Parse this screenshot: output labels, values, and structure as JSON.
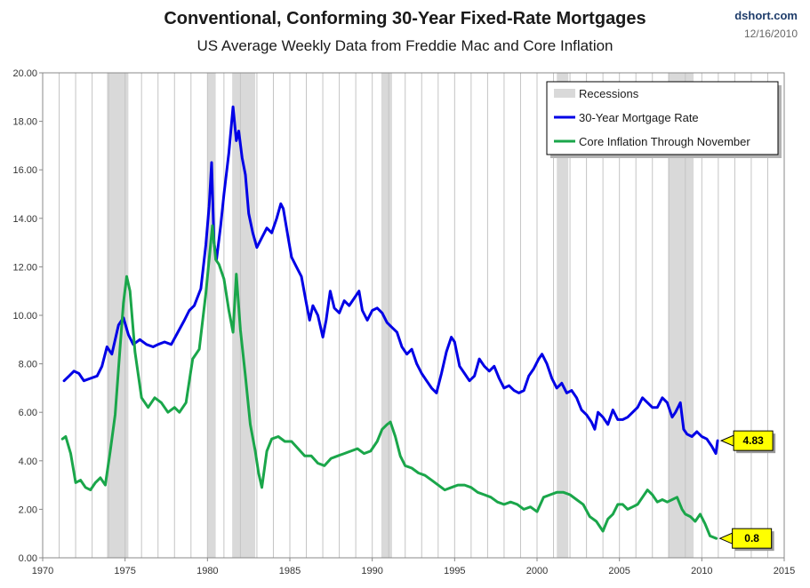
{
  "header": {
    "title": "Conventional, Conforming 30-Year Fixed-Rate Mortgages",
    "subtitle": "US Average Weekly Data from Freddie Mac and Core Inflation",
    "source": "dshort.com",
    "date": "12/16/2010"
  },
  "chart_data": {
    "type": "line",
    "title": "Conventional, Conforming 30-Year Fixed-Rate Mortgages",
    "subtitle": "US Average Weekly Data from Freddie Mac and Core Inflation",
    "xlim": [
      1970,
      2015
    ],
    "ylim": [
      0,
      20
    ],
    "x_ticks": [
      "1970",
      "1975",
      "1980",
      "1985",
      "1990",
      "1995",
      "2000",
      "2005",
      "2010",
      "2015"
    ],
    "y_ticks": [
      "0.00",
      "2.00",
      "4.00",
      "6.00",
      "8.00",
      "10.00",
      "12.00",
      "14.00",
      "16.00",
      "18.00",
      "20.00"
    ],
    "grid": "vertical",
    "legend_position": "top-right",
    "recessions": {
      "name": "Recessions",
      "color": "#d9d9d9",
      "periods": [
        [
          1973.9,
          1975.2
        ],
        [
          1980.0,
          1980.5
        ],
        [
          1981.5,
          1982.9
        ],
        [
          1990.55,
          1991.2
        ],
        [
          2001.2,
          2001.9
        ],
        [
          2007.95,
          2009.5
        ]
      ]
    },
    "series": [
      {
        "name": "30-Year Mortgage Rate",
        "color": "#0000e6",
        "x": [
          1971.3,
          1971.6,
          1971.9,
          1972.2,
          1972.5,
          1972.9,
          1973.3,
          1973.6,
          1973.9,
          1974.2,
          1974.6,
          1974.9,
          1975.2,
          1975.5,
          1975.9,
          1976.3,
          1976.7,
          1977.0,
          1977.4,
          1977.8,
          1978.2,
          1978.6,
          1978.9,
          1979.2,
          1979.6,
          1979.9,
          1980.1,
          1980.25,
          1980.4,
          1980.55,
          1980.8,
          1981.0,
          1981.3,
          1981.55,
          1981.75,
          1981.9,
          1982.1,
          1982.3,
          1982.5,
          1982.75,
          1983.0,
          1983.3,
          1983.6,
          1983.9,
          1984.2,
          1984.45,
          1984.6,
          1984.9,
          1985.1,
          1985.4,
          1985.7,
          1986.0,
          1986.2,
          1986.4,
          1986.7,
          1987.0,
          1987.2,
          1987.45,
          1987.7,
          1988.0,
          1988.3,
          1988.6,
          1988.9,
          1989.2,
          1989.4,
          1989.7,
          1990.0,
          1990.3,
          1990.6,
          1990.9,
          1991.2,
          1991.5,
          1991.8,
          1992.1,
          1992.4,
          1992.7,
          1993.0,
          1993.3,
          1993.6,
          1993.9,
          1994.2,
          1994.5,
          1994.8,
          1995.0,
          1995.3,
          1995.6,
          1995.9,
          1996.2,
          1996.5,
          1996.8,
          1997.1,
          1997.4,
          1997.7,
          1998.0,
          1998.3,
          1998.6,
          1998.9,
          1999.2,
          1999.5,
          1999.8,
          2000.1,
          2000.3,
          2000.6,
          2000.9,
          2001.2,
          2001.5,
          2001.8,
          2002.1,
          2002.4,
          2002.7,
          2003.0,
          2003.3,
          2003.5,
          2003.7,
          2004.0,
          2004.3,
          2004.6,
          2004.9,
          2005.2,
          2005.5,
          2005.8,
          2006.1,
          2006.4,
          2006.7,
          2007.0,
          2007.3,
          2007.6,
          2007.9,
          2008.2,
          2008.4,
          2008.7,
          2008.9,
          2009.1,
          2009.4,
          2009.7,
          2010.0,
          2010.3,
          2010.6,
          2010.85,
          2010.96
        ],
        "values": [
          7.3,
          7.5,
          7.7,
          7.6,
          7.3,
          7.4,
          7.5,
          7.9,
          8.7,
          8.4,
          9.6,
          9.9,
          9.2,
          8.8,
          9.0,
          8.8,
          8.7,
          8.8,
          8.9,
          8.8,
          9.3,
          9.8,
          10.2,
          10.4,
          11.1,
          12.9,
          14.5,
          16.3,
          13.0,
          12.3,
          13.7,
          15.0,
          16.7,
          18.6,
          17.2,
          17.6,
          16.5,
          15.8,
          14.2,
          13.4,
          12.8,
          13.2,
          13.6,
          13.4,
          14.0,
          14.6,
          14.4,
          13.2,
          12.4,
          12.0,
          11.6,
          10.5,
          9.8,
          10.4,
          10.0,
          9.1,
          9.8,
          11.0,
          10.3,
          10.1,
          10.6,
          10.4,
          10.7,
          11.0,
          10.2,
          9.8,
          10.2,
          10.3,
          10.1,
          9.7,
          9.5,
          9.3,
          8.7,
          8.4,
          8.6,
          8.0,
          7.6,
          7.3,
          7.0,
          6.8,
          7.6,
          8.5,
          9.1,
          8.9,
          7.9,
          7.6,
          7.3,
          7.5,
          8.2,
          7.9,
          7.7,
          7.9,
          7.4,
          7.0,
          7.1,
          6.9,
          6.8,
          6.9,
          7.5,
          7.8,
          8.2,
          8.4,
          8.0,
          7.4,
          7.0,
          7.2,
          6.8,
          6.9,
          6.6,
          6.1,
          5.9,
          5.6,
          5.3,
          6.0,
          5.8,
          5.5,
          6.1,
          5.7,
          5.7,
          5.8,
          6.0,
          6.2,
          6.6,
          6.4,
          6.2,
          6.2,
          6.6,
          6.4,
          5.8,
          6.0,
          6.4,
          5.3,
          5.1,
          5.0,
          5.2,
          5.0,
          4.9,
          4.6,
          4.3,
          4.83
        ]
      },
      {
        "name": "Core Inflation Through November",
        "color": "#1aa64a",
        "x": [
          1971.2,
          1971.4,
          1971.7,
          1972.0,
          1972.3,
          1972.6,
          1972.9,
          1973.2,
          1973.5,
          1973.8,
          1974.1,
          1974.4,
          1974.7,
          1974.9,
          1975.1,
          1975.3,
          1975.6,
          1976.0,
          1976.4,
          1976.8,
          1977.2,
          1977.6,
          1978.0,
          1978.3,
          1978.7,
          1979.1,
          1979.5,
          1979.9,
          1980.1,
          1980.3,
          1980.5,
          1980.7,
          1981.0,
          1981.3,
          1981.55,
          1981.75,
          1982.0,
          1982.3,
          1982.6,
          1982.9,
          1983.1,
          1983.3,
          1983.6,
          1983.9,
          1984.3,
          1984.7,
          1985.1,
          1985.5,
          1985.9,
          1986.3,
          1986.7,
          1987.1,
          1987.5,
          1987.9,
          1988.3,
          1988.7,
          1989.1,
          1989.5,
          1989.9,
          1990.3,
          1990.6,
          1990.9,
          1991.1,
          1991.4,
          1991.7,
          1992.0,
          1992.4,
          1992.8,
          1993.2,
          1993.6,
          1994.0,
          1994.4,
          1994.8,
          1995.2,
          1995.6,
          1996.0,
          1996.4,
          1996.8,
          1997.2,
          1997.6,
          1998.0,
          1998.4,
          1998.8,
          1999.2,
          1999.6,
          2000.0,
          2000.4,
          2000.8,
          2001.2,
          2001.6,
          2002.0,
          2002.4,
          2002.8,
          2003.2,
          2003.6,
          2004.0,
          2004.3,
          2004.6,
          2004.9,
          2005.2,
          2005.5,
          2005.8,
          2006.1,
          2006.4,
          2006.7,
          2007.0,
          2007.3,
          2007.6,
          2007.9,
          2008.2,
          2008.5,
          2008.8,
          2009.0,
          2009.3,
          2009.6,
          2009.9,
          2010.2,
          2010.5,
          2010.88
        ],
        "values": [
          4.9,
          5.0,
          4.3,
          3.1,
          3.2,
          2.9,
          2.8,
          3.1,
          3.3,
          3.0,
          4.4,
          5.9,
          8.7,
          10.5,
          11.6,
          11.0,
          8.5,
          6.6,
          6.2,
          6.6,
          6.4,
          6.0,
          6.2,
          6.0,
          6.4,
          8.2,
          8.6,
          10.9,
          12.3,
          13.7,
          12.3,
          12.1,
          11.5,
          10.2,
          9.3,
          11.7,
          9.4,
          7.5,
          5.5,
          4.4,
          3.5,
          2.9,
          4.4,
          4.9,
          5.0,
          4.8,
          4.8,
          4.5,
          4.2,
          4.2,
          3.9,
          3.8,
          4.1,
          4.2,
          4.3,
          4.4,
          4.5,
          4.3,
          4.4,
          4.8,
          5.3,
          5.5,
          5.6,
          5.0,
          4.2,
          3.8,
          3.7,
          3.5,
          3.4,
          3.2,
          3.0,
          2.8,
          2.9,
          3.0,
          3.0,
          2.9,
          2.7,
          2.6,
          2.5,
          2.3,
          2.2,
          2.3,
          2.2,
          2.0,
          2.1,
          1.9,
          2.5,
          2.6,
          2.7,
          2.7,
          2.6,
          2.4,
          2.2,
          1.7,
          1.5,
          1.1,
          1.6,
          1.8,
          2.2,
          2.2,
          2.0,
          2.1,
          2.2,
          2.5,
          2.8,
          2.6,
          2.3,
          2.4,
          2.3,
          2.4,
          2.5,
          2.0,
          1.8,
          1.7,
          1.5,
          1.8,
          1.4,
          0.9,
          0.8
        ]
      }
    ],
    "callouts": [
      {
        "label": "4.83",
        "series": "30-Year Mortgage Rate",
        "x": 2010.96,
        "y": 4.83
      },
      {
        "label": "0.8",
        "series": "Core Inflation Through November",
        "x": 2010.88,
        "y": 0.8
      }
    ]
  }
}
